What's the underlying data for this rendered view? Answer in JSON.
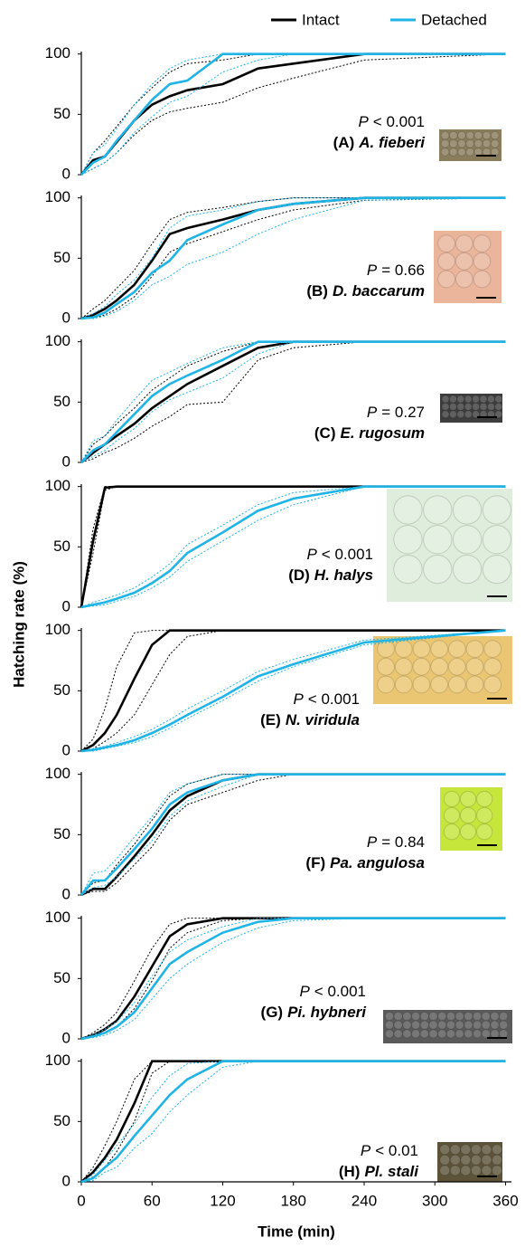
{
  "figure": {
    "ylabel": "Hatching rate (%)",
    "xlabel": "Time (min)"
  },
  "chart_data": [
    {
      "type": "line",
      "panel": "(A)",
      "species": "A. fieberi",
      "stat": "P",
      "stat_value": "< 0.001",
      "x": [
        0,
        10,
        20,
        30,
        45,
        60,
        75,
        90,
        120,
        150,
        180,
        240,
        360
      ],
      "xlim": [
        0,
        365
      ],
      "ylim": [
        0,
        102
      ],
      "yticks": [
        0,
        50,
        100
      ],
      "series": [
        {
          "name": "Intact",
          "color": "#000000",
          "values": [
            0,
            12,
            15,
            27,
            45,
            58,
            65,
            70,
            75,
            88,
            92,
            100,
            100
          ],
          "lower": [
            0,
            5,
            10,
            18,
            33,
            45,
            52,
            55,
            60,
            72,
            80,
            95,
            100
          ],
          "upper": [
            0,
            18,
            28,
            40,
            58,
            72,
            85,
            92,
            95,
            100,
            100,
            100,
            100
          ]
        },
        {
          "name": "Detached",
          "color": "#1fb4e6",
          "values": [
            0,
            10,
            15,
            28,
            45,
            62,
            75,
            78,
            100,
            100,
            100,
            100,
            100
          ],
          "lower": [
            0,
            5,
            10,
            18,
            35,
            48,
            60,
            65,
            85,
            95,
            100,
            100,
            100
          ],
          "upper": [
            0,
            18,
            25,
            38,
            58,
            75,
            88,
            95,
            100,
            100,
            100,
            100,
            100
          ]
        }
      ]
    },
    {
      "type": "line",
      "panel": "(B)",
      "species": "D. baccarum",
      "stat": "P",
      "stat_value": "= 0.66",
      "x": [
        0,
        10,
        20,
        30,
        45,
        60,
        75,
        90,
        120,
        150,
        180,
        240,
        360
      ],
      "xlim": [
        0,
        365
      ],
      "ylim": [
        0,
        102
      ],
      "yticks": [
        0,
        50,
        100
      ],
      "series": [
        {
          "color": "#000000",
          "values": [
            0,
            3,
            8,
            15,
            28,
            48,
            70,
            75,
            82,
            90,
            95,
            100,
            100
          ],
          "lower": [
            0,
            0,
            3,
            8,
            18,
            35,
            55,
            62,
            72,
            82,
            90,
            98,
            100
          ],
          "upper": [
            0,
            8,
            15,
            25,
            40,
            62,
            82,
            88,
            92,
            97,
            100,
            100,
            100
          ]
        },
        {
          "color": "#1fb4e6",
          "values": [
            0,
            1,
            5,
            12,
            22,
            38,
            48,
            65,
            78,
            90,
            95,
            100,
            100
          ],
          "lower": [
            0,
            0,
            2,
            6,
            15,
            28,
            35,
            45,
            55,
            70,
            82,
            98,
            100
          ],
          "upper": [
            0,
            4,
            10,
            20,
            32,
            50,
            75,
            85,
            90,
            97,
            100,
            100,
            100
          ]
        }
      ]
    },
    {
      "type": "line",
      "panel": "(C)",
      "species": "E. rugosum",
      "stat": "P",
      "stat_value": "= 0.27",
      "x": [
        0,
        10,
        20,
        30,
        45,
        60,
        75,
        90,
        120,
        150,
        180,
        240,
        360
      ],
      "xlim": [
        0,
        365
      ],
      "ylim": [
        0,
        102
      ],
      "yticks": [
        0,
        50,
        100
      ],
      "series": [
        {
          "color": "#000000",
          "values": [
            0,
            8,
            15,
            22,
            32,
            45,
            55,
            65,
            80,
            95,
            100,
            100,
            100
          ],
          "lower": [
            0,
            3,
            8,
            12,
            20,
            30,
            38,
            48,
            50,
            85,
            95,
            100,
            100
          ],
          "upper": [
            0,
            15,
            22,
            32,
            45,
            60,
            70,
            80,
            92,
            100,
            100,
            100,
            100
          ]
        },
        {
          "color": "#1fb4e6",
          "values": [
            0,
            10,
            15,
            25,
            40,
            55,
            65,
            72,
            85,
            100,
            100,
            100,
            100
          ],
          "lower": [
            0,
            5,
            10,
            18,
            28,
            42,
            52,
            58,
            70,
            90,
            100,
            100,
            100
          ],
          "upper": [
            0,
            18,
            22,
            35,
            52,
            68,
            75,
            82,
            95,
            100,
            100,
            100,
            100
          ]
        }
      ]
    },
    {
      "type": "line",
      "panel": "(D)",
      "species": "H. halys",
      "stat": "P",
      "stat_value": "< 0.001",
      "x": [
        0,
        10,
        20,
        30,
        45,
        60,
        75,
        90,
        120,
        150,
        180,
        240,
        360
      ],
      "xlim": [
        0,
        365
      ],
      "ylim": [
        0,
        102
      ],
      "yticks": [
        0,
        50,
        100
      ],
      "series": [
        {
          "color": "#000000",
          "values": [
            0,
            55,
            99,
            100,
            100,
            100,
            100,
            100,
            100,
            100,
            100,
            100,
            100
          ],
          "lower": [
            0,
            45,
            97,
            100,
            100,
            100,
            100,
            100,
            100,
            100,
            100,
            100,
            100
          ],
          "upper": [
            0,
            65,
            100,
            100,
            100,
            100,
            100,
            100,
            100,
            100,
            100,
            100,
            100
          ]
        },
        {
          "color": "#1fb4e6",
          "values": [
            0,
            2,
            4,
            7,
            12,
            20,
            30,
            45,
            62,
            80,
            90,
            100,
            100
          ],
          "lower": [
            0,
            1,
            2,
            5,
            9,
            16,
            25,
            38,
            55,
            72,
            85,
            100,
            100
          ],
          "upper": [
            0,
            4,
            7,
            10,
            16,
            25,
            36,
            52,
            68,
            85,
            95,
            100,
            100
          ]
        }
      ]
    },
    {
      "type": "line",
      "panel": "(E)",
      "species": "N. viridula",
      "stat": "P",
      "stat_value": "< 0.001",
      "x": [
        0,
        10,
        20,
        30,
        45,
        60,
        75,
        90,
        120,
        150,
        180,
        240,
        360
      ],
      "xlim": [
        0,
        365
      ],
      "ylim": [
        0,
        102
      ],
      "yticks": [
        0,
        50,
        100
      ],
      "series": [
        {
          "color": "#000000",
          "values": [
            0,
            5,
            15,
            30,
            60,
            88,
            100,
            100,
            100,
            100,
            100,
            100,
            100
          ],
          "lower": [
            0,
            2,
            8,
            15,
            30,
            55,
            80,
            95,
            100,
            100,
            100,
            100,
            100
          ],
          "upper": [
            0,
            10,
            35,
            70,
            98,
            100,
            100,
            100,
            100,
            100,
            100,
            100,
            100
          ]
        },
        {
          "color": "#1fb4e6",
          "values": [
            0,
            1,
            3,
            5,
            9,
            15,
            22,
            30,
            45,
            62,
            72,
            90,
            100
          ],
          "lower": [
            0,
            0,
            2,
            4,
            7,
            12,
            19,
            27,
            42,
            58,
            70,
            88,
            100
          ],
          "upper": [
            0,
            2,
            4,
            7,
            12,
            18,
            26,
            35,
            50,
            66,
            76,
            92,
            100
          ]
        }
      ]
    },
    {
      "type": "line",
      "panel": "(F)",
      "species": "Pa. angulosa",
      "stat": "P",
      "stat_value": "= 0.84",
      "x": [
        0,
        10,
        20,
        30,
        45,
        60,
        75,
        90,
        120,
        150,
        180,
        240,
        360
      ],
      "xlim": [
        0,
        365
      ],
      "ylim": [
        0,
        102
      ],
      "yticks": [
        0,
        50,
        100
      ],
      "series": [
        {
          "color": "#000000",
          "values": [
            0,
            5,
            5,
            15,
            32,
            50,
            70,
            82,
            95,
            100,
            100,
            100,
            100
          ],
          "lower": [
            0,
            3,
            3,
            10,
            25,
            40,
            62,
            75,
            85,
            95,
            100,
            100,
            100
          ],
          "upper": [
            0,
            10,
            12,
            25,
            42,
            62,
            82,
            92,
            100,
            100,
            100,
            100,
            100
          ]
        },
        {
          "color": "#1fb4e6",
          "values": [
            0,
            12,
            12,
            22,
            38,
            55,
            75,
            85,
            95,
            100,
            100,
            100,
            100
          ],
          "lower": [
            0,
            6,
            8,
            15,
            30,
            45,
            65,
            78,
            90,
            100,
            100,
            100,
            100
          ],
          "upper": [
            0,
            18,
            20,
            30,
            48,
            65,
            85,
            92,
            100,
            100,
            100,
            100,
            100
          ]
        }
      ]
    },
    {
      "type": "line",
      "panel": "(G)",
      "species": "Pi. hybneri",
      "stat": "P",
      "stat_value": "< 0.001",
      "x": [
        0,
        10,
        20,
        30,
        45,
        60,
        75,
        90,
        120,
        150,
        180,
        240,
        360
      ],
      "xlim": [
        0,
        365
      ],
      "ylim": [
        0,
        102
      ],
      "yticks": [
        0,
        50,
        100
      ],
      "series": [
        {
          "color": "#000000",
          "values": [
            0,
            3,
            8,
            15,
            35,
            60,
            85,
            95,
            100,
            100,
            100,
            100,
            100
          ],
          "lower": [
            0,
            2,
            5,
            10,
            25,
            48,
            75,
            88,
            98,
            100,
            100,
            100,
            100
          ],
          "upper": [
            0,
            5,
            12,
            22,
            48,
            75,
            95,
            100,
            100,
            100,
            100,
            100,
            100
          ]
        },
        {
          "color": "#1fb4e6",
          "values": [
            0,
            2,
            5,
            10,
            22,
            42,
            62,
            72,
            88,
            97,
            100,
            100,
            100
          ],
          "lower": [
            0,
            1,
            3,
            7,
            16,
            33,
            50,
            62,
            80,
            92,
            98,
            100,
            100
          ],
          "upper": [
            0,
            3,
            8,
            14,
            30,
            52,
            72,
            82,
            93,
            100,
            100,
            100,
            100
          ]
        }
      ]
    },
    {
      "type": "line",
      "panel": "(H)",
      "species": "Pl. stali",
      "stat": "P",
      "stat_value": "< 0.01",
      "x": [
        0,
        10,
        20,
        30,
        45,
        60,
        75,
        90,
        120,
        150,
        180,
        240,
        360
      ],
      "xlim": [
        0,
        365
      ],
      "ylim": [
        0,
        102
      ],
      "yticks": [
        0,
        50,
        100
      ],
      "xticks": [
        0,
        60,
        120,
        180,
        240,
        300,
        360
      ],
      "series": [
        {
          "color": "#000000",
          "values": [
            0,
            8,
            20,
            35,
            65,
            100,
            100,
            100,
            100,
            100,
            100,
            100,
            100
          ],
          "lower": [
            0,
            4,
            12,
            25,
            50,
            90,
            100,
            100,
            100,
            100,
            100,
            100,
            100
          ],
          "upper": [
            0,
            12,
            30,
            50,
            85,
            100,
            100,
            100,
            100,
            100,
            100,
            100,
            100
          ]
        },
        {
          "color": "#1fb4e6",
          "values": [
            0,
            3,
            12,
            20,
            38,
            55,
            72,
            85,
            100,
            100,
            100,
            100,
            100
          ],
          "lower": [
            0,
            1,
            8,
            12,
            28,
            40,
            58,
            72,
            95,
            100,
            100,
            100,
            100
          ],
          "upper": [
            0,
            6,
            18,
            30,
            48,
            70,
            88,
            98,
            100,
            100,
            100,
            100,
            100
          ]
        }
      ]
    }
  ]
}
